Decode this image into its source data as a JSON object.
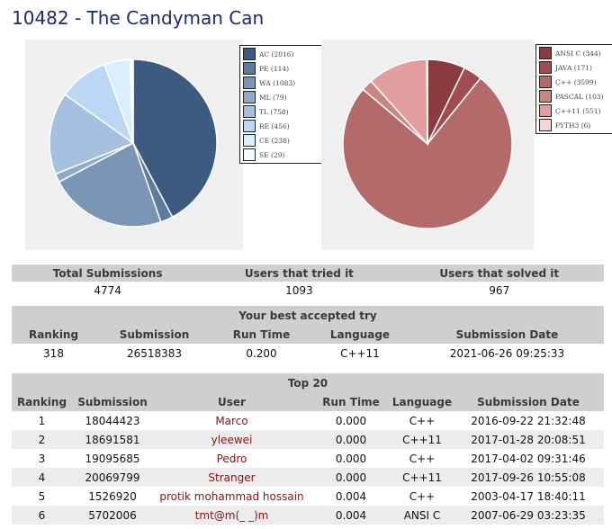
{
  "title": "10482 - The Candyman Can",
  "verdict_chart": {
    "type": "pie",
    "legend": [
      {
        "label": "AC (2016)",
        "value": 2016,
        "color": "#3d5a80"
      },
      {
        "label": "PE (114)",
        "value": 114,
        "color": "#5f7a9c"
      },
      {
        "label": "WA (1083)",
        "value": 1083,
        "color": "#7a95b6"
      },
      {
        "label": "ML (79)",
        "value": 79,
        "color": "#8fa9c8"
      },
      {
        "label": "TL (758)",
        "value": 758,
        "color": "#a6c0e0"
      },
      {
        "label": "RE (456)",
        "value": 456,
        "color": "#bcd6f5"
      },
      {
        "label": "CE (238)",
        "value": 238,
        "color": "#d9efff"
      },
      {
        "label": "SE (29)",
        "value": 29,
        "color": "#f4fbff"
      }
    ]
  },
  "language_chart": {
    "type": "pie",
    "legend": [
      {
        "label": "ANSI C (344)",
        "value": 344,
        "color": "#8b3a3e"
      },
      {
        "label": "JAVA (171)",
        "value": 171,
        "color": "#a14c50"
      },
      {
        "label": "C++ (3599)",
        "value": 3599,
        "color": "#b56a6a"
      },
      {
        "label": "PASCAL (103)",
        "value": 103,
        "color": "#c98584"
      },
      {
        "label": "C++11 (551)",
        "value": 551,
        "color": "#e29e9e"
      },
      {
        "label": "PYTH3 (6)",
        "value": 6,
        "color": "#f6d4d4"
      }
    ]
  },
  "stats": {
    "headers": [
      "Total Submissions",
      "Users that tried it",
      "Users that solved it"
    ],
    "values": [
      "4774",
      "1093",
      "967"
    ]
  },
  "best_try": {
    "caption": "Your best accepted try",
    "headers": [
      "Ranking",
      "Submission",
      "Run Time",
      "Language",
      "Submission Date"
    ],
    "row": [
      "318",
      "26518383",
      "0.200",
      "C++11",
      "2021-06-26 09:25:33"
    ]
  },
  "top20": {
    "caption": "Top 20",
    "headers": [
      "Ranking",
      "Submission",
      "User",
      "Run Time",
      "Language",
      "Submission Date"
    ],
    "rows": [
      [
        "1",
        "18044423",
        "Marco",
        "0.000",
        "C++",
        "2016-09-22 21:32:48"
      ],
      [
        "2",
        "18691581",
        "yleewei",
        "0.000",
        "C++11",
        "2017-01-28 20:08:51"
      ],
      [
        "3",
        "19095685",
        "Pedro",
        "0.000",
        "C++",
        "2017-04-02 09:31:46"
      ],
      [
        "4",
        "20069799",
        "Stranger",
        "0.000",
        "C++11",
        "2017-09-26 10:55:08"
      ],
      [
        "5",
        "1526920",
        "protik mohammad hossain",
        "0.004",
        "C++",
        "2003-04-17 18:40:11"
      ],
      [
        "6",
        "5702006",
        "tmt@m(_ _)m",
        "0.004",
        "ANSI C",
        "2007-06-29 03:23:35"
      ]
    ]
  }
}
